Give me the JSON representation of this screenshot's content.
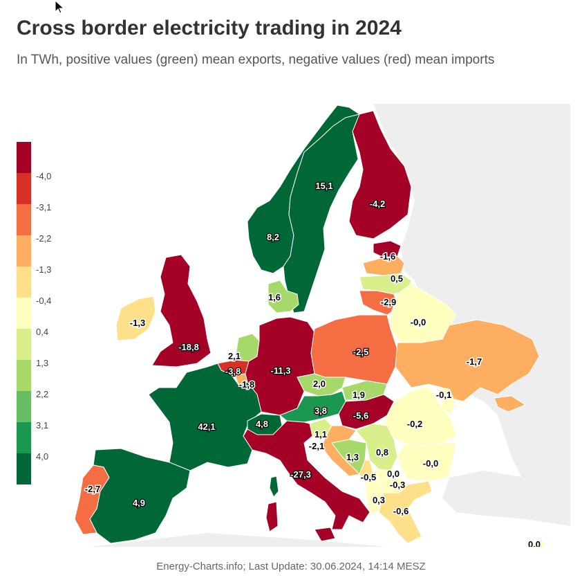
{
  "title": "Cross border electricity trading in 2024",
  "subtitle": "In TWh, positive values (green) mean exports, negative values (red) mean imports",
  "footer": "Energy-Charts.info; Last Update: 30.06.2024, 14:14 MESZ",
  "legend": {
    "colors": [
      "#a50026",
      "#d73027",
      "#f46d43",
      "#fdae61",
      "#fee08b",
      "#ffffbf",
      "#d9ef8b",
      "#a6d96a",
      "#66bd63",
      "#1a9850",
      "#006837"
    ],
    "labels": [
      "-4,0",
      "-3,1",
      "-2,2",
      "-1,3",
      "-0,4",
      "0,4",
      "1,3",
      "2,2",
      "3,1",
      "4,0"
    ]
  },
  "colors": {
    "background_land": "#eeeeee",
    "border": "#ffffff"
  },
  "countries": [
    {
      "name": "Sweden",
      "value": "15,1",
      "num": 15.1
    },
    {
      "name": "Norway",
      "value": "8,2",
      "num": 8.2
    },
    {
      "name": "Finland",
      "value": "-4,2",
      "num": -4.2
    },
    {
      "name": "Estonia",
      "value": "",
      "num": -4.5
    },
    {
      "name": "Latvia",
      "value": "-1,6",
      "num": -1.6
    },
    {
      "name": "Lithuania",
      "value": "0,5",
      "num": 0.5
    },
    {
      "name": "Kaliningrad",
      "value": "-2,9",
      "num": -2.9
    },
    {
      "name": "Belarus",
      "value": "-0,0",
      "num": 0.0
    },
    {
      "name": "Denmark",
      "value": "1,6",
      "num": 1.6
    },
    {
      "name": "Ireland",
      "value": "-1,3",
      "num": -1.3
    },
    {
      "name": "United Kingdom",
      "value": "-18,8",
      "num": -18.8
    },
    {
      "name": "Netherlands",
      "value": "2,1",
      "num": 2.1
    },
    {
      "name": "Belgium",
      "value": "-3,8",
      "num": -3.8
    },
    {
      "name": "Luxembourg",
      "value": "-1,8",
      "num": -1.8
    },
    {
      "name": "Germany",
      "value": "-11,3",
      "num": -11.3
    },
    {
      "name": "Poland",
      "value": "-2,5",
      "num": -2.5
    },
    {
      "name": "Ukraine",
      "value": "-1,7",
      "num": -1.7
    },
    {
      "name": "Czechia",
      "value": "2,0",
      "num": 2.0
    },
    {
      "name": "Slovakia",
      "value": "1,9",
      "num": 1.9
    },
    {
      "name": "Moldova",
      "value": "-0,1",
      "num": -0.1
    },
    {
      "name": "Austria",
      "value": "3,8",
      "num": 3.8
    },
    {
      "name": "Hungary",
      "value": "-5,6",
      "num": -5.6
    },
    {
      "name": "Romania",
      "value": "-0,2",
      "num": -0.2
    },
    {
      "name": "France",
      "value": "42,1",
      "num": 42.1
    },
    {
      "name": "Switzerland",
      "value": "4,8",
      "num": 4.8
    },
    {
      "name": "Slovenia",
      "value": "1,1",
      "num": 1.1
    },
    {
      "name": "Croatia",
      "value": "-2,1",
      "num": -2.1
    },
    {
      "name": "Bosnia and Herzegovina",
      "value": "1,3",
      "num": 1.3
    },
    {
      "name": "Serbia",
      "value": "0,8",
      "num": 0.8
    },
    {
      "name": "Bulgaria",
      "value": "-0,0",
      "num": 0.0
    },
    {
      "name": "Montenegro",
      "value": "-0,5",
      "num": -0.5
    },
    {
      "name": "Kosovo",
      "value": "0,0",
      "num": 0.0
    },
    {
      "name": "North Macedonia",
      "value": "-0,3",
      "num": -0.3
    },
    {
      "name": "Albania",
      "value": "0,3",
      "num": 0.3
    },
    {
      "name": "Greece",
      "value": "-0,6",
      "num": -0.6
    },
    {
      "name": "Italy",
      "value": "-27,3",
      "num": -27.3
    },
    {
      "name": "Spain",
      "value": "4,9",
      "num": 4.9
    },
    {
      "name": "Portugal",
      "value": "-2,7",
      "num": -2.7
    },
    {
      "name": "Cyprus",
      "value": "0,0",
      "num": 0.0
    }
  ]
}
